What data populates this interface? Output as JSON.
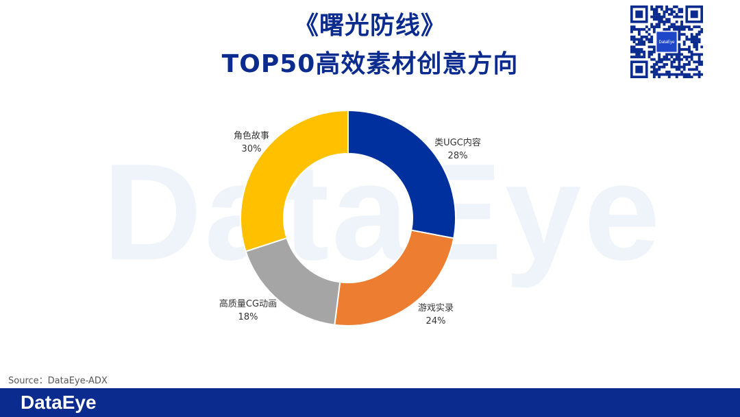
{
  "title": {
    "line1": "《曙光防线》",
    "line2": "TOP50高效素材创意方向"
  },
  "watermark": "DataEye",
  "source": "Source：DataEye-ADX",
  "footer": {
    "logo": "DataEye"
  },
  "qr_center_label": "DataEye",
  "colors": {
    "title": "#0b2b8f",
    "footer_bar": "#0b2b8f",
    "slice_ugc": "#002f9e",
    "slice_game": "#ed7d31",
    "slice_cg": "#a5a5a5",
    "slice_story": "#ffc000"
  },
  "chart_data": {
    "type": "pie",
    "style": "donut",
    "series": [
      {
        "name": "类UGC内容",
        "value": 28,
        "label": "28%",
        "color": "#002f9e"
      },
      {
        "name": "游戏实录",
        "value": 24,
        "label": "24%",
        "color": "#ed7d31"
      },
      {
        "name": "高质量CG动画",
        "value": 18,
        "label": "18%",
        "color": "#a5a5a5"
      },
      {
        "name": "角色故事",
        "value": 30,
        "label": "30%",
        "color": "#ffc000"
      }
    ]
  }
}
